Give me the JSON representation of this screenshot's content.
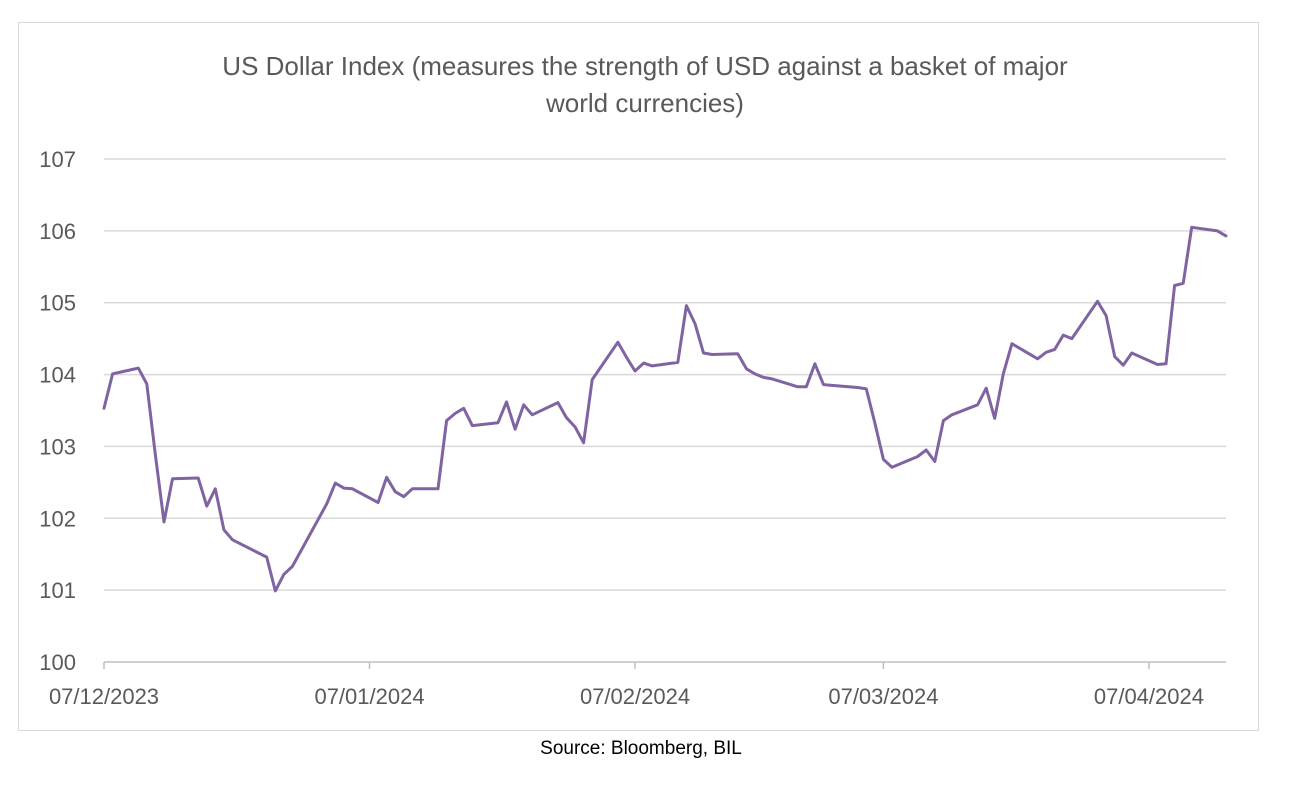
{
  "source_note": "Source: Bloomberg, BIL",
  "colors": {
    "line": "#8064A2",
    "grid": "#d9d9d9",
    "axis": "#bfbfbf",
    "text": "#595959"
  },
  "chart_data": {
    "type": "line",
    "title_lines": [
      "US Dollar Index (measures the strength of USD against a basket of major",
      "world currencies)"
    ],
    "xlabel": "",
    "ylabel": "",
    "ylim": [
      100,
      107
    ],
    "yticks": [
      100,
      101,
      102,
      103,
      104,
      105,
      106,
      107
    ],
    "xlim": [
      "2023-12-07",
      "2024-04-16"
    ],
    "xticks": [
      {
        "date": "2023-12-07",
        "label": "07/12/2023"
      },
      {
        "date": "2024-01-07",
        "label": "07/01/2024"
      },
      {
        "date": "2024-02-07",
        "label": "07/02/2024"
      },
      {
        "date": "2024-03-07",
        "label": "07/03/2024"
      },
      {
        "date": "2024-04-07",
        "label": "07/04/2024"
      }
    ],
    "grid": true,
    "legend": "none",
    "series": [
      {
        "points": [
          [
            "2023-12-07",
            103.53
          ],
          [
            "2023-12-08",
            104.01
          ],
          [
            "2023-12-11",
            104.09
          ],
          [
            "2023-12-12",
            103.87
          ],
          [
            "2023-12-13",
            102.88
          ],
          [
            "2023-12-14",
            101.95
          ],
          [
            "2023-12-15",
            102.55
          ],
          [
            "2023-12-18",
            102.56
          ],
          [
            "2023-12-19",
            102.17
          ],
          [
            "2023-12-20",
            102.41
          ],
          [
            "2023-12-21",
            101.84
          ],
          [
            "2023-12-22",
            101.7
          ],
          [
            "2023-12-26",
            101.46
          ],
          [
            "2023-12-27",
            100.99
          ],
          [
            "2023-12-28",
            101.22
          ],
          [
            "2023-12-29",
            101.33
          ],
          [
            "2024-01-02",
            102.2
          ],
          [
            "2024-01-03",
            102.49
          ],
          [
            "2024-01-04",
            102.42
          ],
          [
            "2024-01-05",
            102.41
          ],
          [
            "2024-01-08",
            102.22
          ],
          [
            "2024-01-09",
            102.57
          ],
          [
            "2024-01-10",
            102.37
          ],
          [
            "2024-01-11",
            102.3
          ],
          [
            "2024-01-12",
            102.41
          ],
          [
            "2024-01-15",
            102.41
          ],
          [
            "2024-01-16",
            103.36
          ],
          [
            "2024-01-17",
            103.46
          ],
          [
            "2024-01-18",
            103.53
          ],
          [
            "2024-01-19",
            103.29
          ],
          [
            "2024-01-22",
            103.33
          ],
          [
            "2024-01-23",
            103.62
          ],
          [
            "2024-01-24",
            103.24
          ],
          [
            "2024-01-25",
            103.58
          ],
          [
            "2024-01-26",
            103.44
          ],
          [
            "2024-01-29",
            103.61
          ],
          [
            "2024-01-30",
            103.4
          ],
          [
            "2024-01-31",
            103.27
          ],
          [
            "2024-02-01",
            103.05
          ],
          [
            "2024-02-02",
            103.93
          ],
          [
            "2024-02-05",
            104.45
          ],
          [
            "2024-02-06",
            104.24
          ],
          [
            "2024-02-07",
            104.05
          ],
          [
            "2024-02-08",
            104.16
          ],
          [
            "2024-02-09",
            104.12
          ],
          [
            "2024-02-12",
            104.17
          ],
          [
            "2024-02-13",
            104.96
          ],
          [
            "2024-02-14",
            104.71
          ],
          [
            "2024-02-15",
            104.3
          ],
          [
            "2024-02-16",
            104.28
          ],
          [
            "2024-02-19",
            104.29
          ],
          [
            "2024-02-20",
            104.08
          ],
          [
            "2024-02-21",
            104.01
          ],
          [
            "2024-02-22",
            103.96
          ],
          [
            "2024-02-23",
            103.94
          ],
          [
            "2024-02-26",
            103.83
          ],
          [
            "2024-02-27",
            103.83
          ],
          [
            "2024-02-28",
            104.15
          ],
          [
            "2024-02-29",
            103.86
          ],
          [
            "2024-03-01",
            103.85
          ],
          [
            "2024-03-04",
            103.82
          ],
          [
            "2024-03-05",
            103.8
          ],
          [
            "2024-03-06",
            103.33
          ],
          [
            "2024-03-07",
            102.82
          ],
          [
            "2024-03-08",
            102.71
          ],
          [
            "2024-03-11",
            102.86
          ],
          [
            "2024-03-12",
            102.95
          ],
          [
            "2024-03-13",
            102.79
          ],
          [
            "2024-03-14",
            103.36
          ],
          [
            "2024-03-15",
            103.44
          ],
          [
            "2024-03-18",
            103.58
          ],
          [
            "2024-03-19",
            103.81
          ],
          [
            "2024-03-20",
            103.39
          ],
          [
            "2024-03-21",
            104.01
          ],
          [
            "2024-03-22",
            104.43
          ],
          [
            "2024-03-25",
            104.22
          ],
          [
            "2024-03-26",
            104.31
          ],
          [
            "2024-03-27",
            104.35
          ],
          [
            "2024-03-28",
            104.55
          ],
          [
            "2024-03-29",
            104.5
          ],
          [
            "2024-04-01",
            105.02
          ],
          [
            "2024-04-02",
            104.82
          ],
          [
            "2024-04-03",
            104.25
          ],
          [
            "2024-04-04",
            104.13
          ],
          [
            "2024-04-05",
            104.3
          ],
          [
            "2024-04-08",
            104.14
          ],
          [
            "2024-04-09",
            104.15
          ],
          [
            "2024-04-10",
            105.24
          ],
          [
            "2024-04-11",
            105.27
          ],
          [
            "2024-04-12",
            106.05
          ],
          [
            "2024-04-15",
            106.0
          ],
          [
            "2024-04-16",
            105.93
          ]
        ]
      }
    ]
  }
}
